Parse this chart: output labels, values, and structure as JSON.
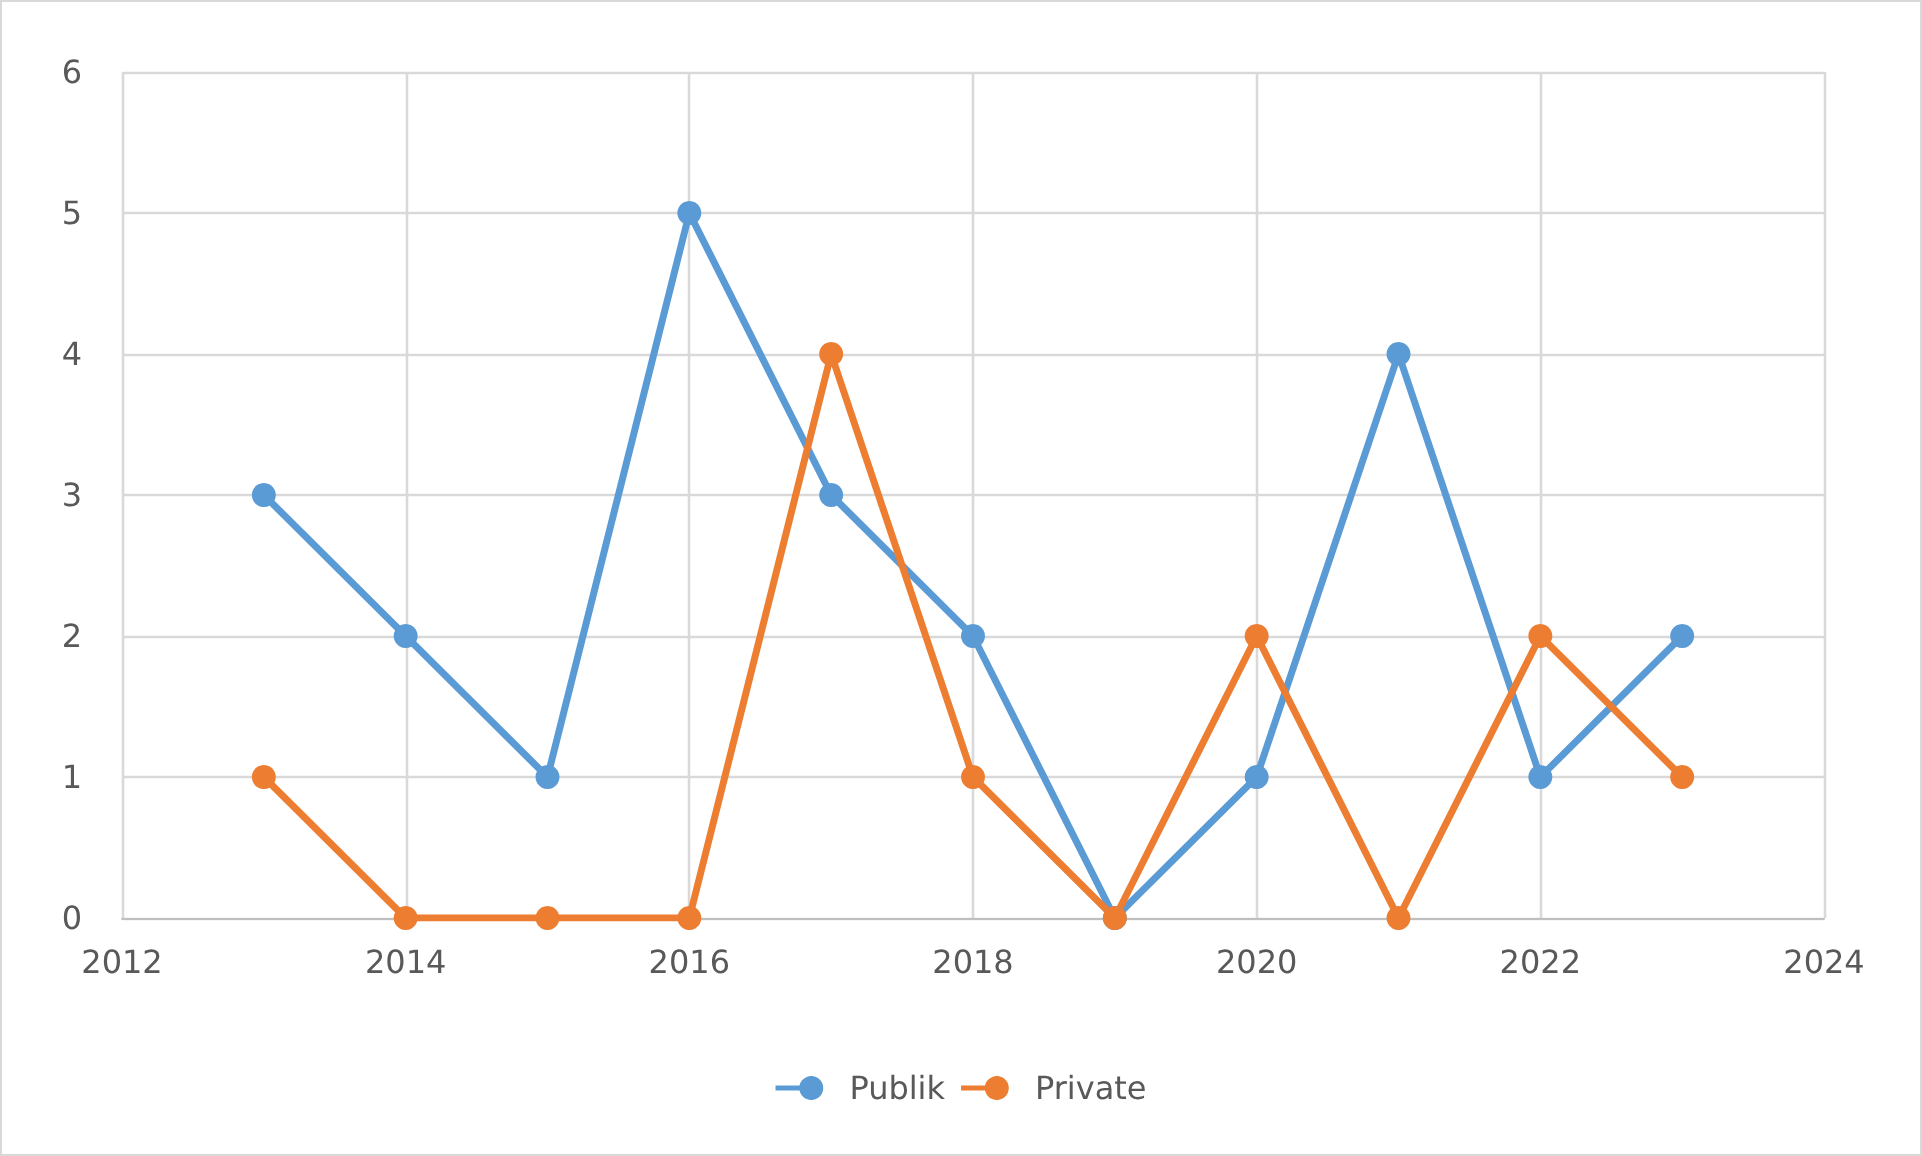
{
  "chart_data": {
    "type": "line",
    "x": [
      2013,
      2014,
      2015,
      2016,
      2017,
      2018,
      2019,
      2020,
      2021,
      2022,
      2023
    ],
    "series": [
      {
        "name": "Publik",
        "color": "#5b9bd5",
        "values": [
          3,
          2,
          1,
          5,
          3,
          2,
          0,
          1,
          4,
          1,
          2
        ]
      },
      {
        "name": "Private",
        "color": "#ed7d31",
        "values": [
          1,
          0,
          0,
          0,
          4,
          1,
          0,
          2,
          0,
          2,
          1
        ]
      }
    ],
    "xlim": [
      2012,
      2024
    ],
    "xticks": [
      2012,
      2014,
      2016,
      2018,
      2020,
      2022,
      2024
    ],
    "ylim": [
      0,
      6
    ],
    "yticks": [
      0,
      1,
      2,
      3,
      4,
      5,
      6
    ],
    "grid": true,
    "legend": "bottom",
    "marker": "circle",
    "line_style": "solid"
  }
}
